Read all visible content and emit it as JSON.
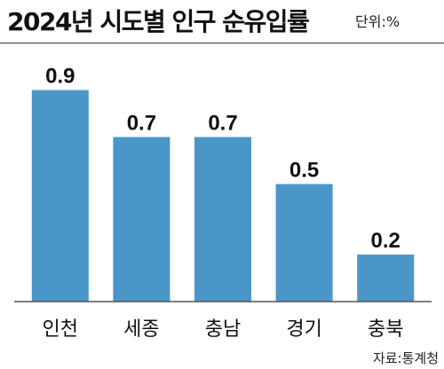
{
  "title": "2024년 시도별 인구 순유입률",
  "unit": "단위:%",
  "source": "자료:통계청",
  "chart_data": {
    "type": "bar",
    "categories": [
      "인천",
      "세종",
      "충남",
      "경기",
      "충북"
    ],
    "values": [
      0.9,
      0.7,
      0.7,
      0.5,
      0.2
    ],
    "ylim": [
      0,
      1.0
    ],
    "grid": false,
    "bar_color": "#4b96c8"
  }
}
